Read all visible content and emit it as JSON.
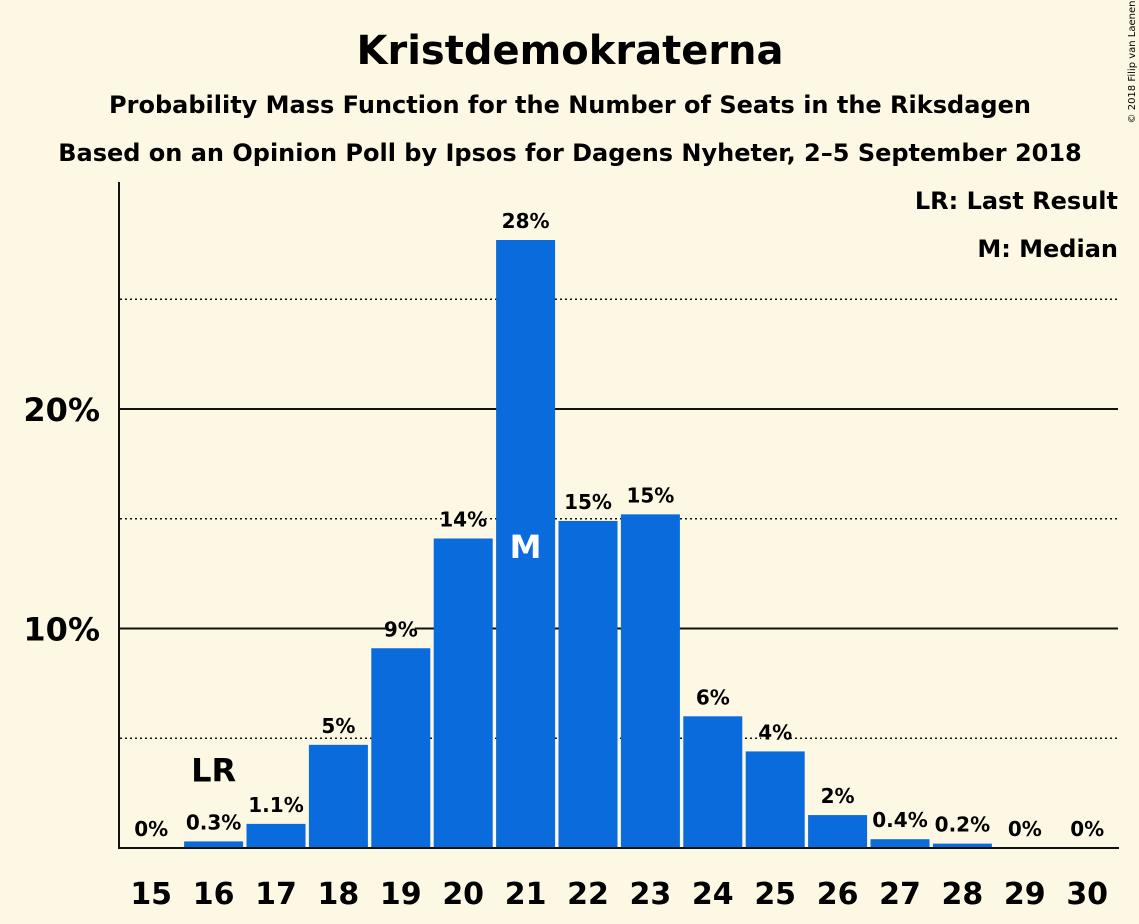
{
  "chart_data": {
    "type": "bar",
    "title": "Kristdemokraterna",
    "subtitle": "Probability Mass Function for the Number of Seats in the Riksdagen",
    "subtitle2": "Based on an Opinion Poll by Ipsos for Dagens Nyheter, 2–5 September 2018",
    "copyright": "© 2018 Filip van Laenen",
    "legend": [
      "LR: Last Result",
      "M: Median"
    ],
    "categories": [
      "15",
      "16",
      "17",
      "18",
      "19",
      "20",
      "21",
      "22",
      "23",
      "24",
      "25",
      "26",
      "27",
      "28",
      "29",
      "30"
    ],
    "values": [
      0,
      0.3,
      1.1,
      4.7,
      9.1,
      14.1,
      27.7,
      14.9,
      15.2,
      6.0,
      4.4,
      1.5,
      0.4,
      0.2,
      0,
      0
    ],
    "data_labels": [
      "0%",
      "0.3%",
      "1.1%",
      "5%",
      "9%",
      "14%",
      "28%",
      "15%",
      "15%",
      "6%",
      "4%",
      "2%",
      "0.4%",
      "0.2%",
      "0%",
      "0%"
    ],
    "y_ticks": [
      {
        "value": 10,
        "label": "10%"
      },
      {
        "value": 20,
        "label": "20%"
      }
    ],
    "minor_gridlines": [
      5,
      15,
      25
    ],
    "ylim": [
      0,
      30
    ],
    "last_result": {
      "category": "16",
      "label": "LR"
    },
    "median": {
      "category": "21",
      "label": "M"
    },
    "colors": {
      "bar": "#0a6cdc",
      "background": "#fdf8e4",
      "text": "#111111"
    }
  }
}
